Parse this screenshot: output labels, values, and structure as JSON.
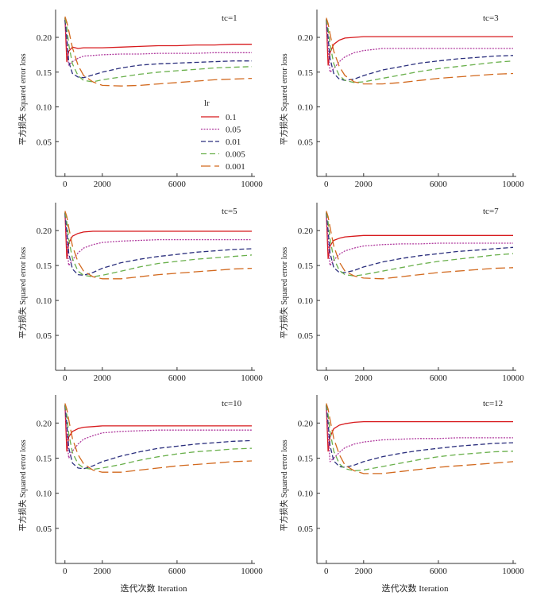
{
  "figure": {
    "xlabel": "迭代次数 Iteration",
    "ylabel": "平方损失 Squared error loss",
    "legend": {
      "title": "lr",
      "entries": [
        "0.1",
        "0.05",
        "0.01",
        "0.005",
        "0.001"
      ]
    }
  },
  "series_styles": [
    {
      "name": "0.1",
      "color": "#d7191c",
      "dash": ""
    },
    {
      "name": "0.05",
      "color": "#b03a9e",
      "dash": "2,1.5"
    },
    {
      "name": "0.01",
      "color": "#2b2f7d",
      "dash": "6,3"
    },
    {
      "name": "0.005",
      "color": "#6ab04c",
      "dash": "7,4"
    },
    {
      "name": "0.001",
      "color": "#d2691e",
      "dash": "12,5"
    }
  ],
  "chart_data": [
    {
      "type": "line",
      "title": "tc=1",
      "xlim": [
        -500,
        10000
      ],
      "ylim": [
        0,
        0.24
      ],
      "xticks": [
        0,
        2000,
        6000,
        10000
      ],
      "yticks": [
        0.05,
        0.1,
        0.15,
        0.2
      ],
      "xticklabels": [
        "0",
        "2000",
        "6000",
        "10000"
      ],
      "yticklabels": [
        "0.05",
        "0.10",
        "0.15",
        "0.20"
      ],
      "x": [
        0,
        100,
        200,
        400,
        700,
        1000,
        1500,
        2000,
        3000,
        4000,
        5000,
        6000,
        7000,
        8000,
        9000,
        10000
      ],
      "series": [
        {
          "name": "0.1",
          "values": [
            0.228,
            0.165,
            0.18,
            0.186,
            0.184,
            0.185,
            0.185,
            0.185,
            0.186,
            0.187,
            0.188,
            0.188,
            0.189,
            0.189,
            0.19,
            0.19
          ]
        },
        {
          "name": "0.05",
          "values": [
            0.225,
            0.188,
            0.16,
            0.165,
            0.17,
            0.173,
            0.174,
            0.175,
            0.176,
            0.176,
            0.177,
            0.177,
            0.177,
            0.178,
            0.178,
            0.178
          ]
        },
        {
          "name": "0.01",
          "values": [
            0.225,
            0.2,
            0.165,
            0.148,
            0.143,
            0.142,
            0.146,
            0.15,
            0.156,
            0.16,
            0.162,
            0.163,
            0.164,
            0.165,
            0.166,
            0.166
          ]
        },
        {
          "name": "0.005",
          "values": [
            0.228,
            0.215,
            0.19,
            0.162,
            0.145,
            0.138,
            0.136,
            0.139,
            0.143,
            0.147,
            0.15,
            0.152,
            0.154,
            0.156,
            0.157,
            0.158
          ]
        },
        {
          "name": "0.001",
          "values": [
            0.23,
            0.222,
            0.21,
            0.185,
            0.16,
            0.145,
            0.136,
            0.131,
            0.13,
            0.131,
            0.133,
            0.135,
            0.137,
            0.139,
            0.14,
            0.141
          ]
        }
      ]
    },
    {
      "type": "line",
      "title": "tc=3",
      "xlim": [
        -500,
        10000
      ],
      "ylim": [
        0,
        0.24
      ],
      "xticks": [
        0,
        2000,
        6000,
        10000
      ],
      "yticks": [
        0.05,
        0.1,
        0.15,
        0.2
      ],
      "xticklabels": [
        "0",
        "2000",
        "6000",
        "10000"
      ],
      "yticklabels": [
        "0.05",
        "0.10",
        "0.15",
        "0.20"
      ],
      "x": [
        0,
        100,
        200,
        400,
        700,
        1000,
        1500,
        2000,
        3000,
        4000,
        5000,
        6000,
        7000,
        8000,
        9000,
        10000
      ],
      "series": [
        {
          "name": "0.1",
          "values": [
            0.226,
            0.16,
            0.178,
            0.19,
            0.196,
            0.199,
            0.2,
            0.201,
            0.201,
            0.201,
            0.201,
            0.201,
            0.201,
            0.201,
            0.201,
            0.201
          ]
        },
        {
          "name": "0.05",
          "values": [
            0.225,
            0.185,
            0.15,
            0.155,
            0.165,
            0.172,
            0.178,
            0.181,
            0.184,
            0.184,
            0.184,
            0.184,
            0.184,
            0.184,
            0.184,
            0.184
          ]
        },
        {
          "name": "0.01",
          "values": [
            0.225,
            0.2,
            0.17,
            0.148,
            0.14,
            0.138,
            0.14,
            0.145,
            0.153,
            0.158,
            0.163,
            0.166,
            0.169,
            0.171,
            0.173,
            0.174
          ]
        },
        {
          "name": "0.005",
          "values": [
            0.226,
            0.212,
            0.19,
            0.162,
            0.145,
            0.138,
            0.135,
            0.136,
            0.141,
            0.146,
            0.151,
            0.155,
            0.158,
            0.161,
            0.164,
            0.166
          ]
        },
        {
          "name": "0.001",
          "values": [
            0.228,
            0.22,
            0.205,
            0.18,
            0.158,
            0.145,
            0.136,
            0.133,
            0.133,
            0.135,
            0.138,
            0.141,
            0.143,
            0.145,
            0.147,
            0.148
          ]
        }
      ]
    },
    {
      "type": "line",
      "title": "tc=5",
      "xlim": [
        -500,
        10000
      ],
      "ylim": [
        0,
        0.24
      ],
      "xticks": [
        0,
        2000,
        6000,
        10000
      ],
      "yticks": [
        0.05,
        0.1,
        0.15,
        0.2
      ],
      "xticklabels": [
        "0",
        "2000",
        "6000",
        "10000"
      ],
      "yticklabels": [
        "0.05",
        "0.10",
        "0.15",
        "0.20"
      ],
      "x": [
        0,
        100,
        200,
        400,
        700,
        1000,
        1500,
        2000,
        3000,
        4000,
        5000,
        6000,
        7000,
        8000,
        9000,
        10000
      ],
      "series": [
        {
          "name": "0.1",
          "values": [
            0.226,
            0.16,
            0.182,
            0.192,
            0.196,
            0.198,
            0.199,
            0.199,
            0.199,
            0.199,
            0.199,
            0.199,
            0.199,
            0.199,
            0.199,
            0.199
          ]
        },
        {
          "name": "0.05",
          "values": [
            0.225,
            0.185,
            0.15,
            0.158,
            0.168,
            0.175,
            0.18,
            0.183,
            0.185,
            0.186,
            0.187,
            0.187,
            0.187,
            0.187,
            0.187,
            0.187
          ]
        },
        {
          "name": "0.01",
          "values": [
            0.225,
            0.2,
            0.168,
            0.145,
            0.137,
            0.136,
            0.14,
            0.146,
            0.154,
            0.159,
            0.163,
            0.166,
            0.169,
            0.171,
            0.173,
            0.174
          ]
        },
        {
          "name": "0.005",
          "values": [
            0.226,
            0.212,
            0.188,
            0.16,
            0.142,
            0.136,
            0.134,
            0.136,
            0.142,
            0.148,
            0.153,
            0.156,
            0.159,
            0.161,
            0.163,
            0.165
          ]
        },
        {
          "name": "0.001",
          "values": [
            0.228,
            0.22,
            0.205,
            0.178,
            0.155,
            0.142,
            0.134,
            0.131,
            0.131,
            0.134,
            0.137,
            0.139,
            0.141,
            0.143,
            0.145,
            0.146
          ]
        }
      ]
    },
    {
      "type": "line",
      "title": "tc=7",
      "xlim": [
        -500,
        10000
      ],
      "ylim": [
        0,
        0.24
      ],
      "xticks": [
        0,
        2000,
        6000,
        10000
      ],
      "yticks": [
        0.05,
        0.1,
        0.15,
        0.2
      ],
      "xticklabels": [
        "0",
        "2000",
        "6000",
        "10000"
      ],
      "yticklabels": [
        "0.05",
        "0.10",
        "0.15",
        "0.20"
      ],
      "x": [
        0,
        100,
        200,
        400,
        700,
        1000,
        1500,
        2000,
        3000,
        4000,
        5000,
        6000,
        7000,
        8000,
        9000,
        10000
      ],
      "series": [
        {
          "name": "0.1",
          "values": [
            0.226,
            0.16,
            0.178,
            0.186,
            0.189,
            0.191,
            0.192,
            0.193,
            0.193,
            0.193,
            0.193,
            0.193,
            0.193,
            0.193,
            0.193,
            0.193
          ]
        },
        {
          "name": "0.05",
          "values": [
            0.225,
            0.185,
            0.15,
            0.158,
            0.166,
            0.171,
            0.175,
            0.178,
            0.18,
            0.181,
            0.181,
            0.182,
            0.182,
            0.182,
            0.182,
            0.182
          ]
        },
        {
          "name": "0.01",
          "values": [
            0.225,
            0.2,
            0.168,
            0.147,
            0.14,
            0.14,
            0.143,
            0.148,
            0.155,
            0.16,
            0.164,
            0.167,
            0.17,
            0.172,
            0.174,
            0.176
          ]
        },
        {
          "name": "0.005",
          "values": [
            0.226,
            0.212,
            0.188,
            0.16,
            0.143,
            0.137,
            0.135,
            0.137,
            0.142,
            0.147,
            0.152,
            0.156,
            0.159,
            0.162,
            0.165,
            0.167
          ]
        },
        {
          "name": "0.001",
          "values": [
            0.228,
            0.22,
            0.205,
            0.178,
            0.155,
            0.142,
            0.135,
            0.132,
            0.131,
            0.134,
            0.137,
            0.14,
            0.142,
            0.144,
            0.146,
            0.147
          ]
        }
      ]
    },
    {
      "type": "line",
      "title": "tc=10",
      "xlim": [
        -500,
        10000
      ],
      "ylim": [
        0,
        0.24
      ],
      "xticks": [
        0,
        2000,
        6000,
        10000
      ],
      "yticks": [
        0.05,
        0.1,
        0.15,
        0.2
      ],
      "xticklabels": [
        "0",
        "2000",
        "6000",
        "10000"
      ],
      "yticklabels": [
        "0.05",
        "0.10",
        "0.15",
        "0.20"
      ],
      "x": [
        0,
        100,
        200,
        400,
        700,
        1000,
        1500,
        2000,
        3000,
        4000,
        5000,
        6000,
        7000,
        8000,
        9000,
        10000
      ],
      "series": [
        {
          "name": "0.1",
          "values": [
            0.226,
            0.16,
            0.18,
            0.188,
            0.192,
            0.194,
            0.195,
            0.196,
            0.196,
            0.196,
            0.196,
            0.196,
            0.196,
            0.196,
            0.196,
            0.196
          ]
        },
        {
          "name": "0.05",
          "values": [
            0.225,
            0.185,
            0.15,
            0.16,
            0.17,
            0.177,
            0.182,
            0.186,
            0.188,
            0.189,
            0.19,
            0.19,
            0.19,
            0.19,
            0.19,
            0.19
          ]
        },
        {
          "name": "0.01",
          "values": [
            0.225,
            0.2,
            0.165,
            0.143,
            0.136,
            0.135,
            0.139,
            0.145,
            0.153,
            0.159,
            0.164,
            0.167,
            0.17,
            0.172,
            0.174,
            0.175
          ]
        },
        {
          "name": "0.005",
          "values": [
            0.226,
            0.212,
            0.185,
            0.158,
            0.142,
            0.136,
            0.134,
            0.136,
            0.141,
            0.147,
            0.152,
            0.156,
            0.159,
            0.161,
            0.163,
            0.164
          ]
        },
        {
          "name": "0.001",
          "values": [
            0.228,
            0.22,
            0.205,
            0.178,
            0.155,
            0.142,
            0.133,
            0.13,
            0.13,
            0.133,
            0.136,
            0.139,
            0.141,
            0.143,
            0.145,
            0.146
          ]
        }
      ]
    },
    {
      "type": "line",
      "title": "tc=12",
      "xlim": [
        -500,
        10000
      ],
      "ylim": [
        0,
        0.24
      ],
      "xticks": [
        0,
        2000,
        6000,
        10000
      ],
      "yticks": [
        0.05,
        0.1,
        0.15,
        0.2
      ],
      "xticklabels": [
        "0",
        "2000",
        "6000",
        "10000"
      ],
      "yticklabels": [
        "0.05",
        "0.10",
        "0.15",
        "0.20"
      ],
      "x": [
        0,
        100,
        200,
        400,
        700,
        1000,
        1500,
        2000,
        3000,
        4000,
        5000,
        6000,
        7000,
        8000,
        9000,
        10000
      ],
      "series": [
        {
          "name": "0.1",
          "values": [
            0.226,
            0.16,
            0.18,
            0.192,
            0.197,
            0.199,
            0.201,
            0.202,
            0.202,
            0.202,
            0.202,
            0.202,
            0.202,
            0.202,
            0.202,
            0.202
          ]
        },
        {
          "name": "0.05",
          "values": [
            0.225,
            0.185,
            0.145,
            0.15,
            0.158,
            0.165,
            0.17,
            0.173,
            0.176,
            0.177,
            0.178,
            0.178,
            0.179,
            0.179,
            0.179,
            0.179
          ]
        },
        {
          "name": "0.01",
          "values": [
            0.225,
            0.2,
            0.168,
            0.146,
            0.138,
            0.137,
            0.14,
            0.145,
            0.152,
            0.157,
            0.161,
            0.164,
            0.167,
            0.169,
            0.171,
            0.172
          ]
        },
        {
          "name": "0.005",
          "values": [
            0.226,
            0.212,
            0.188,
            0.16,
            0.142,
            0.135,
            0.132,
            0.133,
            0.138,
            0.143,
            0.148,
            0.152,
            0.155,
            0.157,
            0.159,
            0.16
          ]
        },
        {
          "name": "0.001",
          "values": [
            0.228,
            0.22,
            0.205,
            0.178,
            0.155,
            0.14,
            0.132,
            0.128,
            0.128,
            0.131,
            0.134,
            0.137,
            0.139,
            0.141,
            0.143,
            0.145
          ]
        }
      ]
    }
  ]
}
